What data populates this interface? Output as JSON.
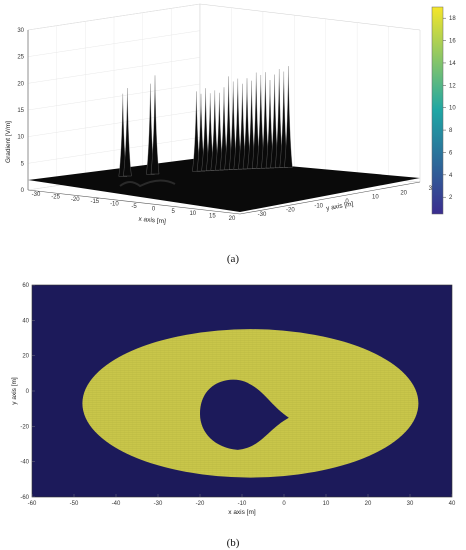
{
  "colors": {
    "surface": "#0a0a0a",
    "map_background": "#1c1a5a",
    "map_region": "#c9c64a",
    "cmap_low": "#3b2d8f",
    "cmap_mid": "#1fa6a4",
    "cmap_high": "#f5e62a"
  },
  "chart_data": [
    {
      "type": "surface3d",
      "caption": "(a)",
      "zlabel": "Gradient [V/m]",
      "xlabel": "x axis [m]",
      "ylabel": "y axis [m]",
      "z_ticks": [
        "0",
        "5",
        "10",
        "15",
        "20",
        "25",
        "30"
      ],
      "x_ticks": [
        "-30",
        "-25",
        "-20",
        "-15",
        "-10",
        "-5",
        "0",
        "5",
        "10",
        "15",
        "20"
      ],
      "y_ticks": [
        "-30",
        "-20",
        "-10",
        "0",
        "10",
        "20",
        "30"
      ],
      "xlim": [
        -30,
        20
      ],
      "ylim": [
        -30,
        30
      ],
      "zlim": [
        0,
        30
      ],
      "colorbar_ticks": [
        "2",
        "4",
        "6",
        "8",
        "10",
        "12",
        "14",
        "16",
        "18"
      ],
      "colorbar_range": [
        0.5,
        19
      ],
      "spikes": [
        {
          "x": -12,
          "height": 15.5
        },
        {
          "x": -11,
          "height": 16.5
        },
        {
          "x": -6,
          "height": 17
        },
        {
          "x": -5,
          "height": 18.5
        },
        {
          "x": 4,
          "height": 15
        },
        {
          "x": 5,
          "height": 14.5
        },
        {
          "x": 6,
          "height": 15.5
        },
        {
          "x": 7,
          "height": 14.5
        },
        {
          "x": 8,
          "height": 15
        },
        {
          "x": 9,
          "height": 14.5
        },
        {
          "x": 10,
          "height": 15.5
        },
        {
          "x": 11,
          "height": 17.5
        },
        {
          "x": 12,
          "height": 16.5
        },
        {
          "x": 13,
          "height": 17
        },
        {
          "x": 14,
          "height": 16
        },
        {
          "x": 15,
          "height": 17
        },
        {
          "x": 16,
          "height": 16.5
        },
        {
          "x": 17,
          "height": 18
        },
        {
          "x": 18,
          "height": 17.5
        },
        {
          "x": 19,
          "height": 18
        },
        {
          "x": 20,
          "height": 16.5
        },
        {
          "x": 21,
          "height": 17.5
        },
        {
          "x": 22,
          "height": 18.5
        },
        {
          "x": 23,
          "height": 18
        },
        {
          "x": 24,
          "height": 19
        }
      ]
    },
    {
      "type": "heatmap",
      "caption": "(b)",
      "xlabel": "x axis [m]",
      "ylabel": "y axis [m]",
      "x_ticks": [
        "-60",
        "-50",
        "-40",
        "-30",
        "-20",
        "-10",
        "0",
        "10",
        "20",
        "30",
        "40"
      ],
      "y_ticks": [
        "60",
        "40",
        "20",
        "0",
        "-20",
        "-40",
        "-60"
      ],
      "xlim": [
        -60,
        40
      ],
      "ylim": [
        -60,
        60
      ],
      "region": {
        "center": [
          -8,
          -7
        ],
        "semi_axis_x": 40,
        "semi_axis_y": 42
      },
      "hole": {
        "center": [
          -11,
          -13
        ],
        "radius": 9
      }
    }
  ]
}
